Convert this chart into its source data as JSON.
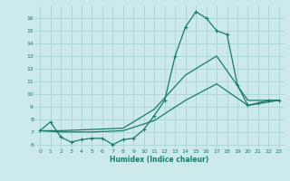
{
  "xlabel": "Humidex (Indice chaleur)",
  "bg_color": "#cce9ec",
  "line_color": "#1a7a6e",
  "grid_color": "#aed4d8",
  "xlim": [
    -0.5,
    23.5
  ],
  "ylim": [
    5.7,
    17.0
  ],
  "yticks": [
    6,
    7,
    8,
    9,
    10,
    11,
    12,
    13,
    14,
    15,
    16
  ],
  "xticks": [
    0,
    1,
    2,
    3,
    4,
    5,
    6,
    7,
    8,
    9,
    10,
    11,
    12,
    13,
    14,
    15,
    16,
    17,
    18,
    19,
    20,
    21,
    22,
    23
  ],
  "line1_x": [
    0,
    1,
    2,
    3,
    4,
    5,
    6,
    7,
    8,
    9,
    10,
    11,
    12,
    13,
    14,
    15,
    16,
    17,
    18,
    19,
    20,
    21,
    22,
    23
  ],
  "line1_y": [
    7.1,
    7.8,
    6.6,
    6.2,
    6.4,
    6.5,
    6.5,
    6.0,
    6.4,
    6.5,
    7.2,
    8.3,
    9.5,
    13.0,
    15.3,
    16.5,
    16.0,
    15.0,
    14.7,
    10.7,
    9.1,
    9.3,
    9.5,
    9.5
  ],
  "line2_x": [
    0,
    2,
    5,
    8,
    11,
    14,
    17,
    20,
    23
  ],
  "line2_y": [
    7.1,
    7.1,
    7.2,
    7.3,
    8.8,
    11.5,
    13.0,
    9.5,
    9.5
  ],
  "line3_x": [
    0,
    2,
    5,
    8,
    11,
    14,
    17,
    20,
    23
  ],
  "line3_y": [
    7.1,
    7.0,
    7.0,
    7.1,
    7.9,
    9.5,
    10.8,
    9.1,
    9.5
  ]
}
